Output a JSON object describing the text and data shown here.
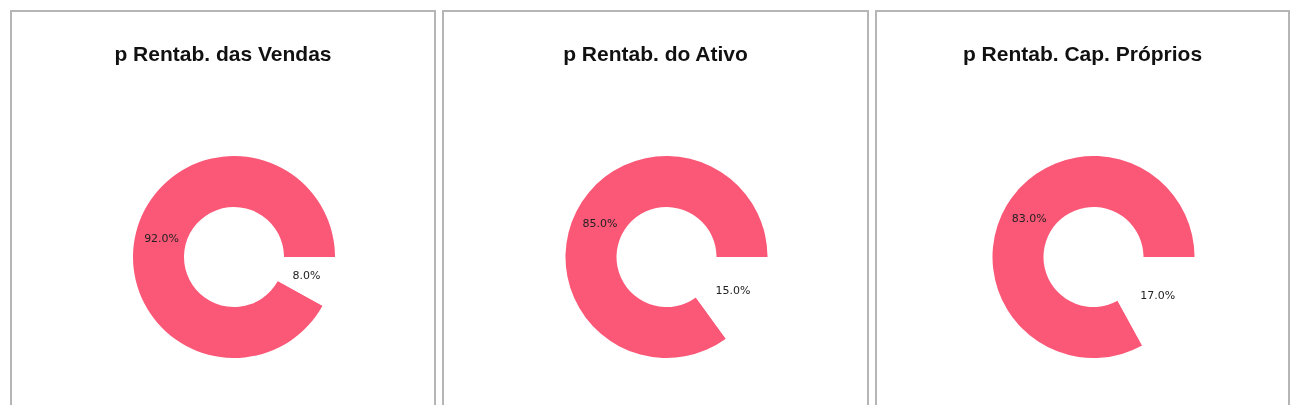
{
  "chart_data": [
    {
      "type": "donut",
      "title": "p Rentab. das Vendas",
      "categories": [
        null,
        null
      ],
      "values": [
        92,
        8
      ],
      "colors": [
        "#fb5878",
        "#ffffff"
      ],
      "value_labels": [
        "92.0%",
        "8.0%"
      ],
      "legend": false
    },
    {
      "type": "donut",
      "title": "p Rentab. do Ativo",
      "categories": [
        null,
        null
      ],
      "values": [
        85,
        15
      ],
      "colors": [
        "#fb5878",
        "#ffffff"
      ],
      "value_labels": [
        "85.0%",
        "15.0%"
      ],
      "legend": false
    },
    {
      "type": "donut",
      "title": "p Rentab. Cap. Próprios",
      "categories": [
        null,
        null
      ],
      "values": [
        83,
        17
      ],
      "colors": [
        "#fb5878",
        "#ffffff"
      ],
      "value_labels": [
        "83.0%",
        "17.0%"
      ],
      "legend": false
    }
  ]
}
